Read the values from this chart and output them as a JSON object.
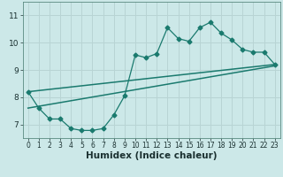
{
  "xlabel": "Humidex (Indice chaleur)",
  "bg_color": "#cce8e8",
  "grid_color": "#b8d4d4",
  "line_color": "#1a7a6e",
  "xlim": [
    -0.5,
    23.5
  ],
  "ylim": [
    6.5,
    11.5
  ],
  "yticks": [
    7,
    8,
    9,
    10,
    11
  ],
  "xticks": [
    0,
    1,
    2,
    3,
    4,
    5,
    6,
    7,
    8,
    9,
    10,
    11,
    12,
    13,
    14,
    15,
    16,
    17,
    18,
    19,
    20,
    21,
    22,
    23
  ],
  "line1_x": [
    0,
    1,
    2,
    3,
    4,
    5,
    6,
    7,
    8,
    9,
    10,
    11,
    12,
    13,
    14,
    15,
    16,
    17,
    18,
    19,
    20,
    21,
    22,
    23
  ],
  "line1_y": [
    8.2,
    7.6,
    7.2,
    7.2,
    6.85,
    6.78,
    6.78,
    6.85,
    7.35,
    8.05,
    9.55,
    9.45,
    9.6,
    10.55,
    10.15,
    10.05,
    10.55,
    10.75,
    10.35,
    10.1,
    9.75,
    9.65,
    9.65,
    9.2
  ],
  "line2_x": [
    0,
    23
  ],
  "line2_y": [
    7.6,
    9.15
  ],
  "line3_x": [
    0,
    23
  ],
  "line3_y": [
    8.2,
    9.2
  ],
  "marker": "D",
  "marker_size": 2.5,
  "xlabel_fontsize": 7.5,
  "tick_fontsize": 6.5
}
